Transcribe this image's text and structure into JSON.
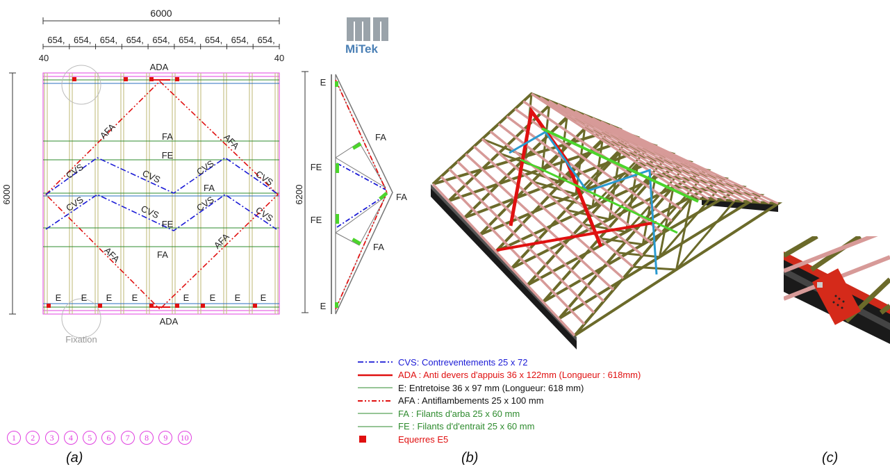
{
  "panel_a": {
    "caption": "(a)",
    "overall_width": "6000",
    "spacings": [
      "654",
      "654",
      "654",
      "654",
      "654",
      "654",
      "654",
      "654",
      "654"
    ],
    "edge_offset_left": "40",
    "edge_offset_right": "40",
    "overall_height": "6000",
    "labels": {
      "ada_top": "ADA",
      "ada_bottom": "ADA",
      "afa": "AFA",
      "fa": "FA",
      "fe": "FE",
      "cvs": "CVS",
      "e": "E",
      "fixation": "Fixation"
    },
    "circle_numbers": [
      "1",
      "2",
      "3",
      "4",
      "5",
      "6",
      "7",
      "8",
      "9",
      "10"
    ]
  },
  "panel_side": {
    "height": "6200",
    "labels": {
      "e_top": "E",
      "fa_upper": "FA",
      "fe_upper": "FE",
      "fa_apex": "FA",
      "fe_lower": "FE",
      "fa_lower": "FA",
      "e_bottom": "E"
    }
  },
  "logo": {
    "text": "MiTek"
  },
  "panel_b": {
    "caption": "(b)"
  },
  "panel_c": {
    "caption": "(c)"
  },
  "legend": [
    {
      "label": "CVS: Contreventements 25 x 72",
      "color": "#1a1ad6",
      "style": "dashdot"
    },
    {
      "label": "ADA : Anti devers d'appuis 36 x 122mm (Longueur : 618mm)",
      "color": "#e01010",
      "style": "solid-thick"
    },
    {
      "label": "E: Entretoise 36 x 97 mm (Longueur: 618 mm)",
      "color": "#2e8b2e",
      "style": "solid-thin",
      "text_color": "#111111"
    },
    {
      "label": "AFA : Antiflambements 25 x 100 mm",
      "color": "#e01010",
      "style": "dashdotdot",
      "text_color": "#111111"
    },
    {
      "label": "FA : Filants d'arba 25 x 60 mm",
      "color": "#2e8b2e",
      "style": "solid-thin"
    },
    {
      "label": "FE : Filants d'd'entrait 25 x 60 mm",
      "color": "#2e8b2e",
      "style": "solid-thin"
    },
    {
      "label": "Equerres E5",
      "color": "#e01010",
      "style": "square"
    }
  ],
  "colors": {
    "cvs": "#1a1ad6",
    "red": "#e01010",
    "green": "#2e8b2e",
    "rafter": "#c9c38a",
    "magenta": "#e040e0",
    "truss_wood": "#6b6a2a",
    "batten": "#d79a98",
    "brace_blue": "#2a9ad0",
    "brace_green": "#4cd42c"
  }
}
